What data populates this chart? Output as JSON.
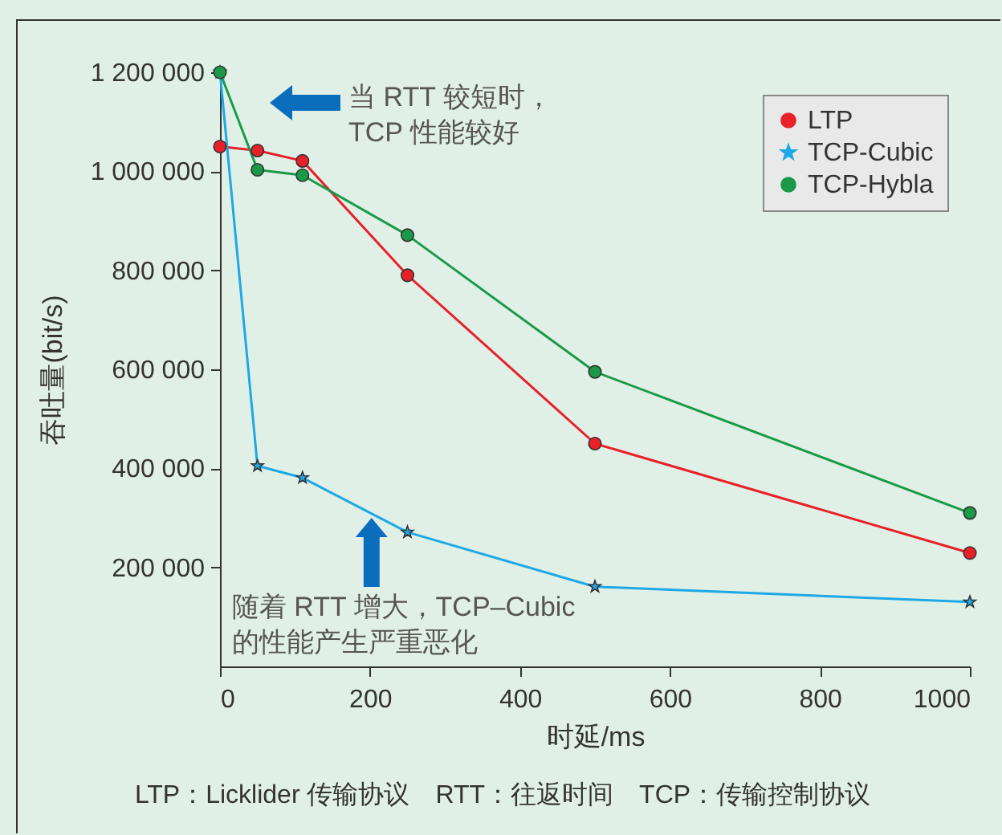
{
  "chart_data": {
    "type": "line",
    "xlabel": "时延/ms",
    "ylabel": "吞吐量(bit/s)",
    "series": [
      {
        "name": "LTP",
        "color": "#e8202a",
        "marker": "circle",
        "x": [
          0,
          50,
          110,
          250,
          500,
          1000
        ],
        "values": [
          1050000,
          1042000,
          1021000,
          790000,
          450000,
          229000
        ]
      },
      {
        "name": "TCP-Cubic",
        "color": "#1ea8e6",
        "marker": "star",
        "x": [
          0,
          50,
          110,
          250,
          500,
          1000
        ],
        "values": [
          1200000,
          405000,
          381000,
          271000,
          161000,
          130000
        ]
      },
      {
        "name": "TCP-Hybla",
        "color": "#1a9a48",
        "marker": "circle",
        "x": [
          0,
          50,
          110,
          250,
          500,
          1000
        ],
        "values": [
          1200000,
          1003000,
          992000,
          871000,
          595000,
          310000
        ]
      }
    ],
    "xlim": [
      0,
      1000
    ],
    "xticks": [
      0,
      200,
      400,
      600,
      800,
      1000
    ],
    "ylim": [
      0,
      1200000
    ],
    "yticks": [
      {
        "value": 200000,
        "label": "200 000"
      },
      {
        "value": 400000,
        "label": "400 000"
      },
      {
        "value": 600000,
        "label": "600 000"
      },
      {
        "value": 800000,
        "label": "800 000"
      },
      {
        "value": 1000000,
        "label": "1 000 000"
      },
      {
        "value": 1200000,
        "label": "1 200 000"
      }
    ],
    "grid": false,
    "legend": "top right",
    "annotations": [
      "当 RTT 较短时，\nTCP 性能较好",
      {
        "text": "随着 RTT 增大，TCP–Cubic\n的性能产生严重恶化",
        "x": 200,
        "y": 300000
      },
      "LTP：Licklider 传输协议　RTT：往返时间　TCP：传输控制协议"
    ]
  }
}
